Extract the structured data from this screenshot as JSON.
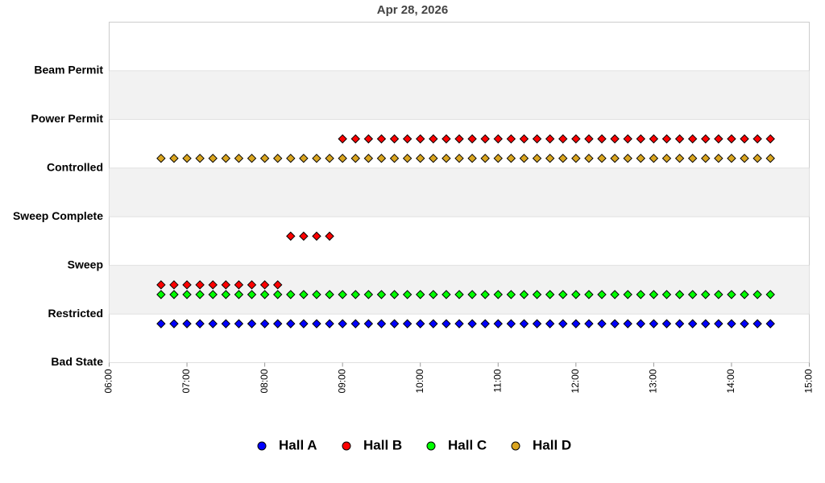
{
  "chart_data": {
    "type": "scatter",
    "title": "Apr 28, 2026",
    "x": [
      "06:40",
      "06:50",
      "07:00",
      "07:10",
      "07:20",
      "07:30",
      "07:40",
      "07:50",
      "08:00",
      "08:10",
      "08:20",
      "08:30",
      "08:40",
      "08:50",
      "09:00",
      "09:10",
      "09:20",
      "09:30",
      "09:40",
      "09:50",
      "10:00",
      "10:10",
      "10:20",
      "10:30",
      "10:40",
      "10:50",
      "11:00",
      "11:10",
      "11:20",
      "11:30",
      "11:40",
      "11:50",
      "12:00",
      "12:10",
      "12:20",
      "12:30",
      "12:40",
      "12:50",
      "13:00",
      "13:10",
      "13:20",
      "13:30",
      "13:40",
      "13:50",
      "14:00",
      "14:10",
      "14:20",
      "14:30"
    ],
    "xlim": [
      "06:00",
      "15:00"
    ],
    "xticks": [
      "06:00",
      "07:00",
      "08:00",
      "09:00",
      "10:00",
      "11:00",
      "12:00",
      "13:00",
      "14:00",
      "15:00"
    ],
    "ylim": [
      0,
      7
    ],
    "yticks": [
      {
        "value": 0,
        "label": "Bad State"
      },
      {
        "value": 1,
        "label": "Restricted"
      },
      {
        "value": 2,
        "label": "Sweep"
      },
      {
        "value": 3,
        "label": "Sweep Complete"
      },
      {
        "value": 4,
        "label": "Controlled"
      },
      {
        "value": 5,
        "label": "Power Permit"
      },
      {
        "value": 6,
        "label": "Beam Permit"
      }
    ],
    "bands": true,
    "legend": "bottom",
    "series": [
      {
        "name": "Hall A",
        "color": "#0000ff",
        "values": [
          0.8,
          0.8,
          0.8,
          0.8,
          0.8,
          0.8,
          0.8,
          0.8,
          0.8,
          0.8,
          0.8,
          0.8,
          0.8,
          0.8,
          0.8,
          0.8,
          0.8,
          0.8,
          0.8,
          0.8,
          0.8,
          0.8,
          0.8,
          0.8,
          0.8,
          0.8,
          0.8,
          0.8,
          0.8,
          0.8,
          0.8,
          0.8,
          0.8,
          0.8,
          0.8,
          0.8,
          0.8,
          0.8,
          0.8,
          0.8,
          0.8,
          0.8,
          0.8,
          0.8,
          0.8,
          0.8,
          0.8,
          0.8
        ]
      },
      {
        "name": "Hall B",
        "color": "#ff0000",
        "values": [
          1.6,
          1.6,
          1.6,
          1.6,
          1.6,
          1.6,
          1.6,
          1.6,
          1.6,
          1.6,
          2.6,
          2.6,
          2.6,
          2.6,
          4.6,
          4.6,
          4.6,
          4.6,
          4.6,
          4.6,
          4.6,
          4.6,
          4.6,
          4.6,
          4.6,
          4.6,
          4.6,
          4.6,
          4.6,
          4.6,
          4.6,
          4.6,
          4.6,
          4.6,
          4.6,
          4.6,
          4.6,
          4.6,
          4.6,
          4.6,
          4.6,
          4.6,
          4.6,
          4.6,
          4.6,
          4.6,
          4.6,
          4.6
        ]
      },
      {
        "name": "Hall C",
        "color": "#00ff00",
        "values": [
          1.4,
          1.4,
          1.4,
          1.4,
          1.4,
          1.4,
          1.4,
          1.4,
          1.4,
          1.4,
          1.4,
          1.4,
          1.4,
          1.4,
          1.4,
          1.4,
          1.4,
          1.4,
          1.4,
          1.4,
          1.4,
          1.4,
          1.4,
          1.4,
          1.4,
          1.4,
          1.4,
          1.4,
          1.4,
          1.4,
          1.4,
          1.4,
          1.4,
          1.4,
          1.4,
          1.4,
          1.4,
          1.4,
          1.4,
          1.4,
          1.4,
          1.4,
          1.4,
          1.4,
          1.4,
          1.4,
          1.4,
          1.4
        ]
      },
      {
        "name": "Hall D",
        "color": "#daa520",
        "values": [
          4.2,
          4.2,
          4.2,
          4.2,
          4.2,
          4.2,
          4.2,
          4.2,
          4.2,
          4.2,
          4.2,
          4.2,
          4.2,
          4.2,
          4.2,
          4.2,
          4.2,
          4.2,
          4.2,
          4.2,
          4.2,
          4.2,
          4.2,
          4.2,
          4.2,
          4.2,
          4.2,
          4.2,
          4.2,
          4.2,
          4.2,
          4.2,
          4.2,
          4.2,
          4.2,
          4.2,
          4.2,
          4.2,
          4.2,
          4.2,
          4.2,
          4.2,
          4.2,
          4.2,
          4.2,
          4.2,
          4.2,
          4.2
        ]
      }
    ]
  }
}
